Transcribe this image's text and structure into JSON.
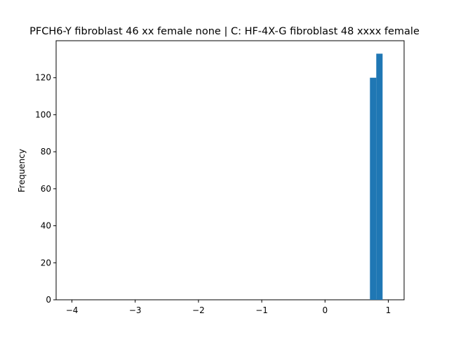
{
  "chart_data": {
    "type": "bar",
    "title": "PFCH6-Y fibroblast 46 xx female none | C: HF-4X-G fibroblast 48 xxxx female",
    "xlabel": "",
    "ylabel": "Frequency",
    "xlim": [
      -4.25,
      1.25
    ],
    "ylim": [
      0,
      140
    ],
    "xticks": [
      -4,
      -3,
      -2,
      -1,
      0,
      1
    ],
    "xtick_labels": [
      "−4",
      "−3",
      "−2",
      "−1",
      "0",
      "1"
    ],
    "yticks": [
      0,
      20,
      40,
      60,
      80,
      100,
      120
    ],
    "ytick_labels": [
      "0",
      "20",
      "40",
      "60",
      "80",
      "100",
      "120"
    ],
    "bins": [
      {
        "x0": 0.71,
        "x1": 0.81,
        "value": 120
      },
      {
        "x0": 0.81,
        "x1": 0.91,
        "value": 133
      }
    ],
    "bar_color": "#1f77b4",
    "grid": false,
    "legend": false
  }
}
